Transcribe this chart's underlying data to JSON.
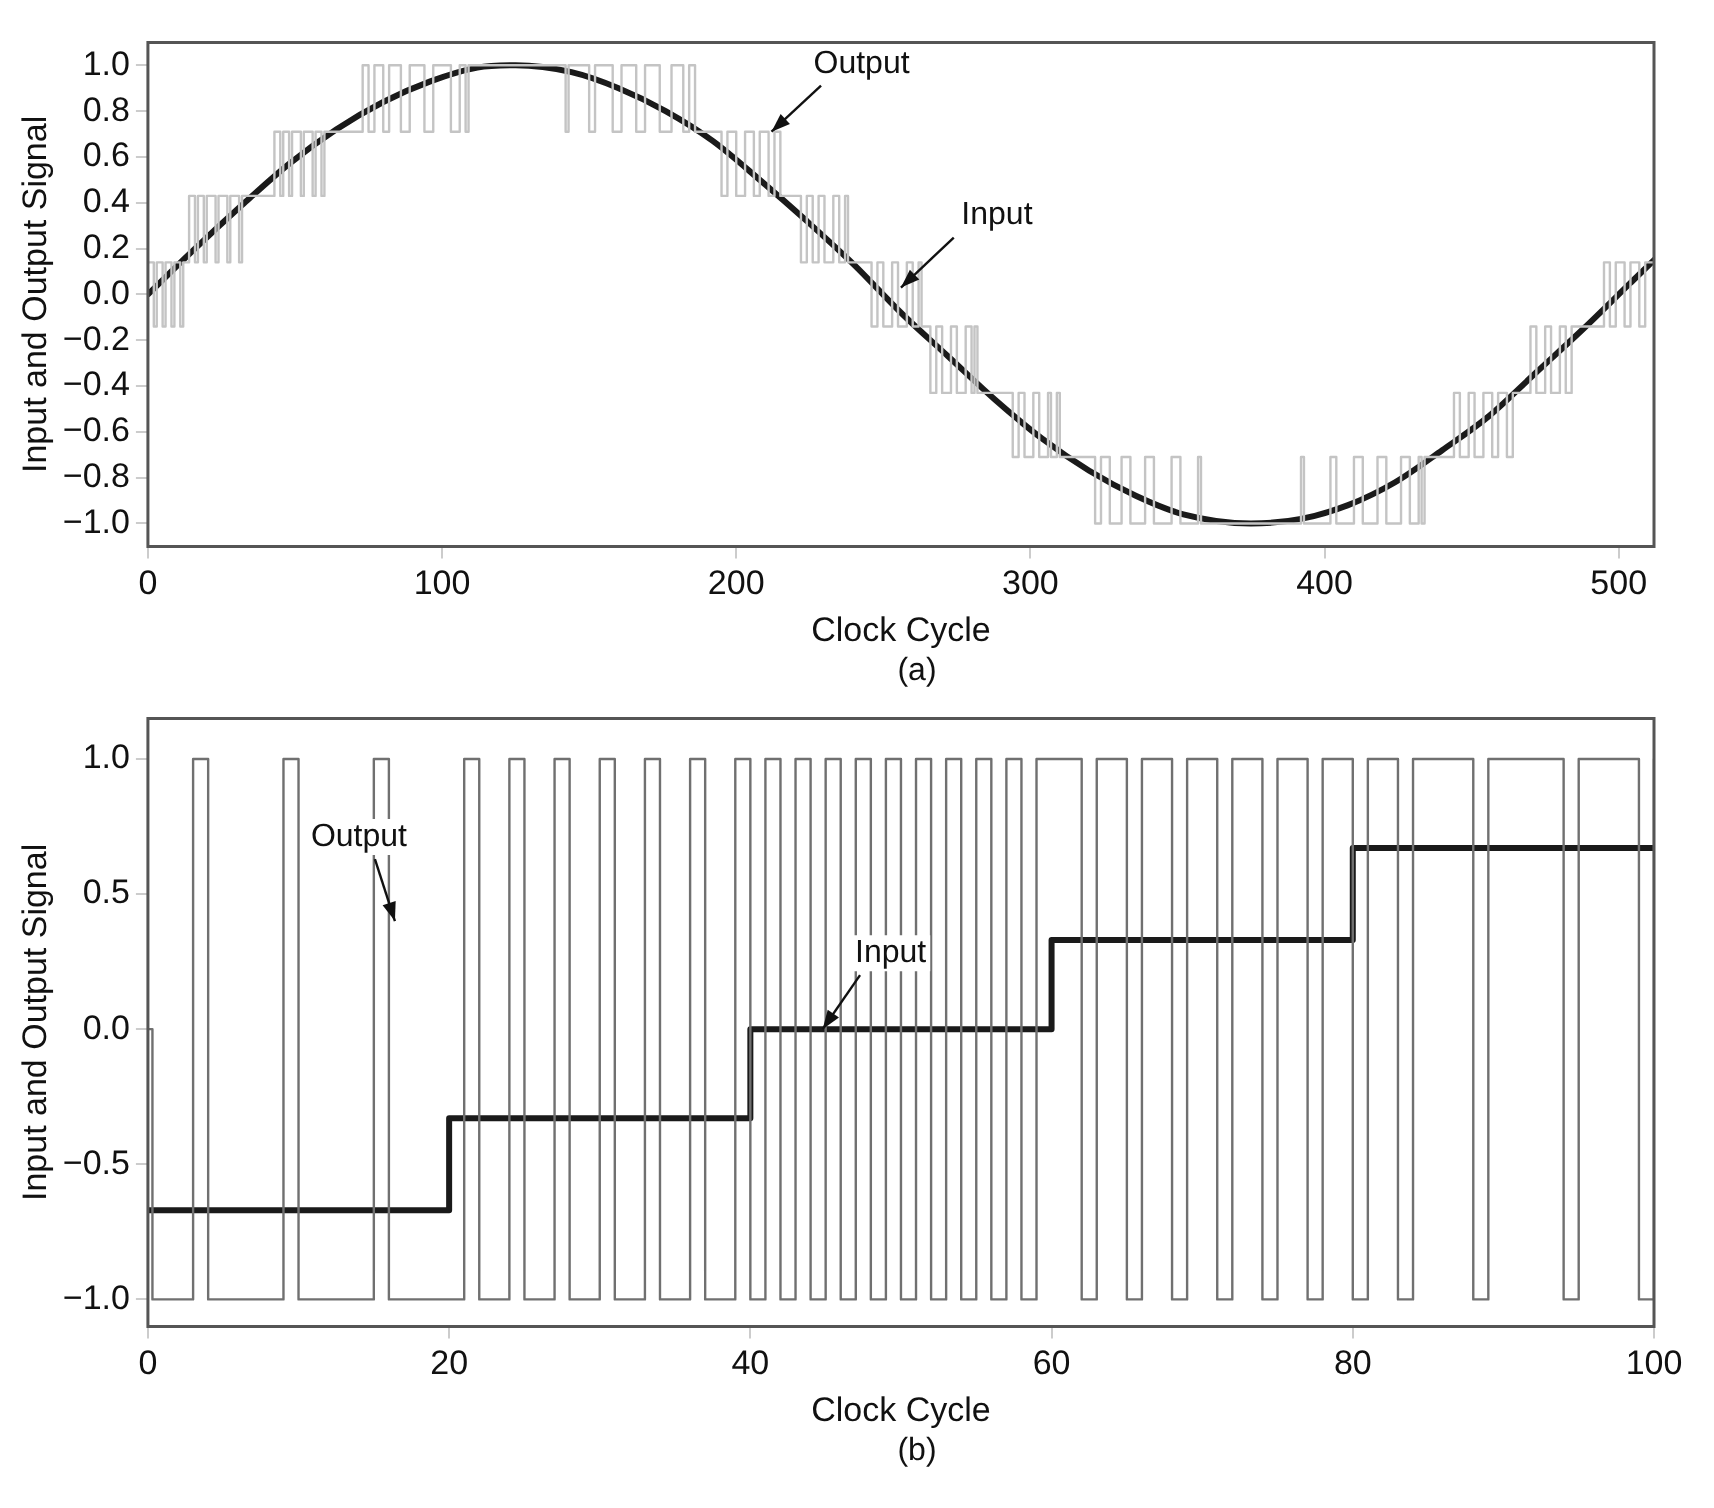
{
  "chart_data": [
    {
      "type": "line",
      "xlabel": "Clock Cycle",
      "ylabel": "Input and Output Signal",
      "xlim": [
        0,
        512
      ],
      "xticks": [
        0,
        100,
        200,
        300,
        400,
        500
      ],
      "ylim": [
        -1.1,
        1.1
      ],
      "yticks": [
        {
          "value": -1,
          "label": "−1.0"
        },
        {
          "value": -0.8,
          "label": "−0.8"
        },
        {
          "value": -0.6,
          "label": "−0.6"
        },
        {
          "value": -0.4,
          "label": "−0.4"
        },
        {
          "value": -0.2,
          "label": "−0.2"
        },
        {
          "value": 0,
          "label": "0.0"
        },
        {
          "value": 0.2,
          "label": "0.2"
        },
        {
          "value": 0.4,
          "label": "0.4"
        },
        {
          "value": 0.6,
          "label": "0.6"
        },
        {
          "value": 0.8,
          "label": "0.8"
        },
        {
          "value": 1,
          "label": "1.0"
        }
      ],
      "series": [
        {
          "type": "step",
          "color": "#c4c4c4",
          "x": [
            0,
            2,
            3,
            5,
            6,
            8,
            9,
            11,
            12,
            14,
            16,
            17,
            19,
            20,
            23,
            24,
            27,
            28,
            31,
            32,
            43,
            45,
            46,
            48,
            49,
            52,
            53,
            56,
            57,
            59,
            60,
            73,
            75,
            77,
            80,
            82,
            86,
            89,
            94,
            97,
            103,
            106,
            108,
            109,
            142,
            143,
            150,
            152,
            158,
            161,
            166,
            169,
            174,
            178,
            182,
            184,
            186,
            195,
            197,
            200,
            203,
            206,
            208,
            211,
            213,
            215,
            222,
            224,
            226,
            228,
            230,
            233,
            235,
            237,
            238,
            246,
            248,
            250,
            253,
            255,
            258,
            260,
            262,
            263,
            266,
            268,
            270,
            273,
            275,
            278,
            280,
            281,
            282,
            294,
            296,
            298,
            301,
            303,
            306,
            307,
            309,
            310,
            322,
            324,
            327,
            331,
            334,
            339,
            342,
            348,
            351,
            357,
            358,
            392,
            393,
            402,
            404,
            410,
            413,
            418,
            421,
            426,
            429,
            432,
            433,
            434,
            444,
            446,
            449,
            451,
            454,
            457,
            459,
            462,
            464,
            470,
            472,
            475,
            477,
            480,
            482,
            484,
            495,
            497,
            499,
            502,
            504,
            507,
            509,
            512
          ],
          "values": [
            0.14,
            -0.14,
            0.14,
            -0.14,
            0.14,
            -0.14,
            0.14,
            -0.14,
            0.14,
            0.43,
            0.14,
            0.43,
            0.14,
            0.43,
            0.14,
            0.43,
            0.14,
            0.43,
            0.14,
            0.43,
            0.71,
            0.43,
            0.71,
            0.43,
            0.71,
            0.43,
            0.71,
            0.43,
            0.71,
            0.43,
            0.71,
            1,
            0.71,
            1,
            0.71,
            1,
            0.71,
            1,
            0.71,
            1,
            0.71,
            1,
            0.71,
            1,
            0.71,
            1,
            0.71,
            1,
            0.71,
            1,
            0.71,
            1,
            0.71,
            1,
            0.71,
            1,
            0.71,
            0.43,
            0.71,
            0.43,
            0.71,
            0.43,
            0.71,
            0.43,
            0.71,
            0.43,
            0.14,
            0.43,
            0.14,
            0.43,
            0.14,
            0.43,
            0.14,
            0.43,
            0.14,
            -0.14,
            0.14,
            -0.14,
            0.14,
            -0.14,
            0.14,
            -0.14,
            0.14,
            -0.14,
            -0.43,
            -0.14,
            -0.43,
            -0.14,
            -0.43,
            -0.14,
            -0.43,
            -0.14,
            -0.43,
            -0.71,
            -0.43,
            -0.71,
            -0.43,
            -0.71,
            -0.43,
            -0.71,
            -0.43,
            -0.71,
            -1,
            -0.71,
            -1,
            -0.71,
            -1,
            -0.71,
            -1,
            -0.71,
            -1,
            -0.71,
            -1,
            -0.71,
            -1,
            -0.71,
            -1,
            -0.71,
            -1,
            -0.71,
            -1,
            -0.71,
            -1,
            -0.71,
            -1,
            -0.71,
            -0.43,
            -0.71,
            -0.43,
            -0.71,
            -0.43,
            -0.71,
            -0.43,
            -0.71,
            -0.43,
            -0.14,
            -0.43,
            -0.14,
            -0.43,
            -0.14,
            -0.43,
            -0.14,
            0.14,
            -0.14,
            0.14,
            -0.14,
            0.14,
            -0.14,
            0.14,
            0.14
          ]
        },
        {
          "type": "line",
          "color": "#1a1a1a",
          "x": [
            0,
            16,
            32,
            48,
            64,
            80,
            96,
            112,
            125,
            144,
            160,
            176,
            192,
            208,
            224,
            240,
            256,
            272,
            288,
            304,
            320,
            336,
            352,
            375,
            392,
            408,
            424,
            440,
            456,
            472,
            488,
            504,
            512
          ],
          "values": [
            0,
            0.2,
            0.39,
            0.57,
            0.72,
            0.84,
            0.93,
            0.99,
            1,
            0.97,
            0.9,
            0.8,
            0.67,
            0.5,
            0.32,
            0.13,
            -0.08,
            -0.27,
            -0.46,
            -0.63,
            -0.77,
            -0.88,
            -0.96,
            -1,
            -0.98,
            -0.92,
            -0.82,
            -0.68,
            -0.53,
            -0.34,
            -0.15,
            0.05,
            0.15
          ]
        }
      ],
      "annotations": [
        {
          "text": "Output",
          "x": 212,
          "y": 0.71
        },
        {
          "text": "Input",
          "x": 256,
          "y": 0.03
        },
        "(a)"
      ]
    },
    {
      "type": "line",
      "xlabel": "Clock Cycle",
      "ylabel": "Input and Output Signal",
      "xlim": [
        0,
        100
      ],
      "xticks": [
        0,
        20,
        40,
        60,
        80,
        100
      ],
      "ylim": [
        -1.1,
        1.15
      ],
      "yticks": [
        {
          "value": -1,
          "label": "−1.0"
        },
        {
          "value": -0.5,
          "label": "−0.5"
        },
        {
          "value": 0,
          "label": "0.0"
        },
        {
          "value": 0.5,
          "label": "0.5"
        },
        {
          "value": 1,
          "label": "1.0"
        }
      ],
      "series": [
        {
          "type": "step",
          "color": "#707070",
          "x": [
            0,
            0.3,
            3,
            4,
            9,
            10,
            15,
            16,
            21,
            22,
            24,
            25,
            27,
            28,
            30,
            31,
            33,
            34,
            36,
            37,
            39,
            40,
            41,
            42,
            43,
            44,
            45,
            46,
            47,
            48,
            49,
            50,
            51,
            52,
            53,
            54,
            55,
            56,
            57,
            58,
            59,
            60,
            62,
            63,
            65,
            66,
            68,
            69,
            71,
            72,
            74,
            75,
            77,
            78,
            80,
            81,
            83,
            84,
            88,
            89,
            94,
            95,
            99,
            100
          ],
          "values": [
            0,
            -1,
            1,
            -1,
            1,
            -1,
            1,
            -1,
            1,
            -1,
            1,
            -1,
            1,
            -1,
            1,
            -1,
            1,
            -1,
            1,
            -1,
            1,
            -1,
            1,
            -1,
            1,
            -1,
            1,
            -1,
            1,
            -1,
            1,
            -1,
            1,
            -1,
            1,
            -1,
            1,
            -1,
            1,
            -1,
            1,
            1,
            -1,
            1,
            -1,
            1,
            -1,
            1,
            -1,
            1,
            -1,
            1,
            -1,
            1,
            -1,
            1,
            -1,
            1,
            -1,
            1,
            -1,
            1,
            -1,
            1
          ]
        },
        {
          "type": "step",
          "color": "#1a1a1a",
          "x": [
            0,
            20,
            40,
            60,
            80,
            100
          ],
          "values": [
            -0.67,
            -0.33,
            0,
            0.33,
            0.67,
            0.67
          ]
        }
      ],
      "annotations": [
        {
          "text": "Output",
          "x": 16.4,
          "y": 0.4
        },
        {
          "text": "Input",
          "x": 44.8,
          "y": 0
        },
        "(b)"
      ]
    }
  ]
}
